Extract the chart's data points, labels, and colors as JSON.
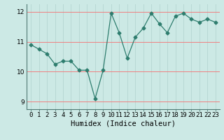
{
  "x": [
    0,
    1,
    2,
    3,
    4,
    5,
    6,
    7,
    8,
    9,
    10,
    11,
    12,
    13,
    14,
    15,
    16,
    17,
    18,
    19,
    20,
    21,
    22,
    23
  ],
  "y": [
    10.9,
    10.75,
    10.6,
    10.25,
    10.35,
    10.35,
    10.05,
    10.05,
    9.1,
    10.05,
    11.95,
    11.3,
    10.45,
    11.15,
    11.45,
    11.95,
    11.6,
    11.3,
    11.85,
    11.95,
    11.75,
    11.65,
    11.75,
    11.65
  ],
  "line_color": "#2e7d6e",
  "marker": "D",
  "marker_size": 2.5,
  "bg_color": "#cce9e5",
  "grid_color_h": "#f08080",
  "grid_color_v": "#b8d8d4",
  "xlabel": "Humidex (Indice chaleur)",
  "ylim": [
    8.75,
    12.25
  ],
  "xlim": [
    -0.5,
    23.5
  ],
  "yticks": [
    9,
    10,
    11,
    12
  ],
  "xticks": [
    0,
    1,
    2,
    3,
    4,
    5,
    6,
    7,
    8,
    9,
    10,
    11,
    12,
    13,
    14,
    15,
    16,
    17,
    18,
    19,
    20,
    21,
    22,
    23
  ],
  "xtick_labels": [
    "0",
    "1",
    "2",
    "3",
    "4",
    "5",
    "6",
    "7",
    "8",
    "9",
    "10",
    "11",
    "12",
    "13",
    "14",
    "15",
    "16",
    "17",
    "18",
    "19",
    "20",
    "21",
    "22",
    "23"
  ],
  "tick_fontsize": 6.5,
  "xlabel_fontsize": 7.5
}
